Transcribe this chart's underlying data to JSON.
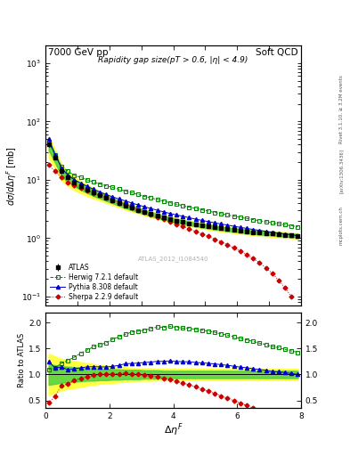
{
  "title_left": "7000 GeV pp",
  "title_right": "Soft QCD",
  "plot_title": "Rapidity gap size(pT > 0.6, |η| < 4.9)",
  "ylabel_main": "dσ / dΔη$^F$ [mb]",
  "ylabel_ratio": "Ratio to ATLAS",
  "xlabel": "Δη$^F$",
  "watermark": "ATLAS_2012_I1084540",
  "right_label_top": "Rivet 3.1.10, ≥ 3.2M events",
  "right_label_mid": "[arXiv:1306.3436]",
  "right_label_bot": "mcplots.cern.ch",
  "xlim": [
    0,
    8
  ],
  "ylim_main": [
    0.07,
    2000
  ],
  "ylim_ratio": [
    0.35,
    2.2
  ],
  "atlas_x": [
    0.1,
    0.3,
    0.5,
    0.7,
    0.9,
    1.1,
    1.3,
    1.5,
    1.7,
    1.9,
    2.1,
    2.3,
    2.5,
    2.7,
    2.9,
    3.1,
    3.3,
    3.5,
    3.7,
    3.9,
    4.1,
    4.3,
    4.5,
    4.7,
    4.9,
    5.1,
    5.3,
    5.5,
    5.7,
    5.9,
    6.1,
    6.3,
    6.5,
    6.7,
    6.9,
    7.1,
    7.3,
    7.5,
    7.7,
    7.9
  ],
  "atlas_y": [
    40,
    24,
    14,
    11,
    9.0,
    7.8,
    6.8,
    6.0,
    5.4,
    4.9,
    4.4,
    4.0,
    3.6,
    3.3,
    3.05,
    2.8,
    2.6,
    2.4,
    2.25,
    2.1,
    2.0,
    1.9,
    1.8,
    1.72,
    1.65,
    1.58,
    1.52,
    1.47,
    1.42,
    1.38,
    1.34,
    1.3,
    1.27,
    1.24,
    1.21,
    1.19,
    1.16,
    1.14,
    1.12,
    1.1
  ],
  "atlas_yerr": [
    4,
    2,
    1.2,
    0.8,
    0.6,
    0.5,
    0.4,
    0.35,
    0.3,
    0.27,
    0.24,
    0.22,
    0.2,
    0.18,
    0.16,
    0.15,
    0.14,
    0.13,
    0.12,
    0.11,
    0.1,
    0.1,
    0.09,
    0.09,
    0.08,
    0.08,
    0.08,
    0.07,
    0.07,
    0.07,
    0.07,
    0.07,
    0.06,
    0.06,
    0.06,
    0.06,
    0.06,
    0.05,
    0.05,
    0.05
  ],
  "atlas_sys_lo": [
    0.8,
    0.82,
    0.84,
    0.85,
    0.86,
    0.87,
    0.88,
    0.88,
    0.89,
    0.89,
    0.9,
    0.9,
    0.91,
    0.91,
    0.91,
    0.92,
    0.92,
    0.92,
    0.93,
    0.93,
    0.93,
    0.93,
    0.93,
    0.93,
    0.93,
    0.93,
    0.93,
    0.93,
    0.93,
    0.93,
    0.93,
    0.93,
    0.93,
    0.93,
    0.93,
    0.93,
    0.93,
    0.93,
    0.93,
    0.93
  ],
  "atlas_sys_hi": [
    1.2,
    1.18,
    1.16,
    1.15,
    1.14,
    1.13,
    1.12,
    1.12,
    1.11,
    1.11,
    1.1,
    1.1,
    1.09,
    1.09,
    1.09,
    1.08,
    1.08,
    1.08,
    1.07,
    1.07,
    1.07,
    1.07,
    1.07,
    1.07,
    1.07,
    1.07,
    1.07,
    1.07,
    1.07,
    1.07,
    1.07,
    1.07,
    1.07,
    1.07,
    1.07,
    1.07,
    1.07,
    1.07,
    1.07,
    1.07
  ],
  "atlas_tot_lo": [
    0.6,
    0.65,
    0.7,
    0.72,
    0.74,
    0.76,
    0.78,
    0.8,
    0.82,
    0.83,
    0.84,
    0.85,
    0.86,
    0.87,
    0.88,
    0.88,
    0.88,
    0.89,
    0.89,
    0.89,
    0.89,
    0.89,
    0.89,
    0.89,
    0.89,
    0.89,
    0.89,
    0.89,
    0.89,
    0.89,
    0.89,
    0.89,
    0.89,
    0.89,
    0.89,
    0.89,
    0.89,
    0.89,
    0.89,
    0.89
  ],
  "atlas_tot_hi": [
    1.4,
    1.35,
    1.3,
    1.28,
    1.26,
    1.24,
    1.22,
    1.2,
    1.18,
    1.17,
    1.16,
    1.15,
    1.14,
    1.13,
    1.12,
    1.12,
    1.12,
    1.11,
    1.11,
    1.11,
    1.11,
    1.11,
    1.11,
    1.11,
    1.11,
    1.11,
    1.11,
    1.11,
    1.11,
    1.11,
    1.11,
    1.11,
    1.11,
    1.11,
    1.11,
    1.11,
    1.11,
    1.11,
    1.11,
    1.11
  ],
  "herwig_x": [
    0.1,
    0.3,
    0.5,
    0.7,
    0.9,
    1.1,
    1.3,
    1.5,
    1.7,
    1.9,
    2.1,
    2.3,
    2.5,
    2.7,
    2.9,
    3.1,
    3.3,
    3.5,
    3.7,
    3.9,
    4.1,
    4.3,
    4.5,
    4.7,
    4.9,
    5.1,
    5.3,
    5.5,
    5.7,
    5.9,
    6.1,
    6.3,
    6.5,
    6.7,
    6.9,
    7.1,
    7.3,
    7.5,
    7.7,
    7.9
  ],
  "herwig_y": [
    44,
    27,
    17,
    14,
    12,
    11,
    10,
    9.2,
    8.5,
    7.9,
    7.4,
    6.9,
    6.4,
    6.0,
    5.6,
    5.2,
    4.9,
    4.6,
    4.3,
    4.05,
    3.82,
    3.6,
    3.4,
    3.22,
    3.06,
    2.9,
    2.76,
    2.62,
    2.5,
    2.38,
    2.27,
    2.17,
    2.08,
    1.99,
    1.91,
    1.83,
    1.76,
    1.69,
    1.63,
    1.57
  ],
  "pythia_x": [
    0.1,
    0.3,
    0.5,
    0.7,
    0.9,
    1.1,
    1.3,
    1.5,
    1.7,
    1.9,
    2.1,
    2.3,
    2.5,
    2.7,
    2.9,
    3.1,
    3.3,
    3.5,
    3.7,
    3.9,
    4.1,
    4.3,
    4.5,
    4.7,
    4.9,
    5.1,
    5.3,
    5.5,
    5.7,
    5.9,
    6.1,
    6.3,
    6.5,
    6.7,
    6.9,
    7.1,
    7.3,
    7.5,
    7.7,
    7.9
  ],
  "pythia_y": [
    50,
    27,
    16,
    12,
    10,
    8.8,
    7.8,
    6.9,
    6.2,
    5.6,
    5.1,
    4.7,
    4.35,
    4.0,
    3.72,
    3.45,
    3.22,
    3.01,
    2.82,
    2.65,
    2.5,
    2.37,
    2.24,
    2.12,
    2.02,
    1.92,
    1.83,
    1.75,
    1.67,
    1.6,
    1.53,
    1.47,
    1.41,
    1.36,
    1.31,
    1.26,
    1.22,
    1.18,
    1.14,
    1.1
  ],
  "sherpa_x": [
    0.1,
    0.3,
    0.5,
    0.7,
    0.9,
    1.1,
    1.3,
    1.5,
    1.7,
    1.9,
    2.1,
    2.3,
    2.5,
    2.7,
    2.9,
    3.1,
    3.3,
    3.5,
    3.7,
    3.9,
    4.1,
    4.3,
    4.5,
    4.7,
    4.9,
    5.1,
    5.3,
    5.5,
    5.7,
    5.9,
    6.1,
    6.3,
    6.5,
    6.7,
    6.9,
    7.1,
    7.3,
    7.5,
    7.7
  ],
  "sherpa_y": [
    18,
    14,
    11,
    9,
    8,
    7.2,
    6.5,
    5.9,
    5.4,
    4.9,
    4.45,
    4.05,
    3.7,
    3.35,
    3.05,
    2.77,
    2.52,
    2.3,
    2.09,
    1.91,
    1.74,
    1.58,
    1.44,
    1.31,
    1.18,
    1.07,
    0.96,
    0.86,
    0.77,
    0.68,
    0.6,
    0.52,
    0.45,
    0.38,
    0.31,
    0.25,
    0.19,
    0.14,
    0.1
  ],
  "atlas_color": "#000000",
  "herwig_color": "#008800",
  "pythia_color": "#0000cc",
  "sherpa_color": "#cc0000",
  "band_yellow": "#ffff44",
  "band_green": "#44cc44",
  "legend_entries": [
    "ATLAS",
    "Herwig 7.2.1 default",
    "Pythia 8.308 default",
    "Sherpa 2.2.9 default"
  ]
}
